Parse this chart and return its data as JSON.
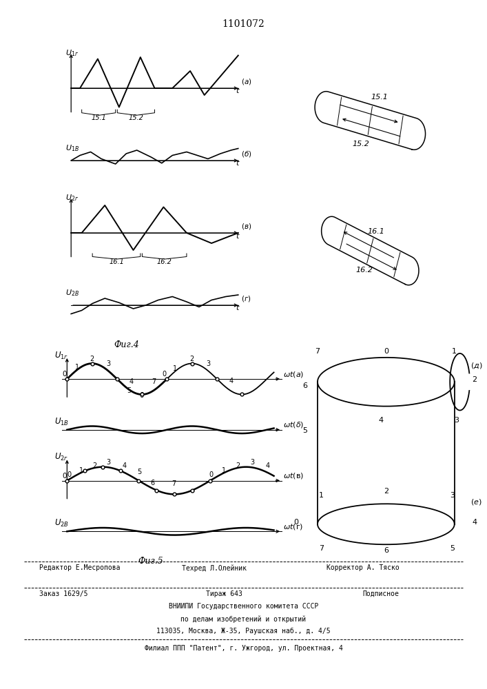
{
  "title": "1101072",
  "fig4_label": "Фиг.4",
  "fig5_label": "Фиг.5",
  "bg_color": "#ffffff",
  "line_color": "#000000",
  "footer_editor": "Редактор Е.Месропова",
  "footer_tech": "Техред Л.Олейник",
  "footer_corr": "Корректор А. Тяско",
  "footer_order": "Заказ 1629/5",
  "footer_print": "Тираж 643",
  "footer_sub": "Подписное",
  "footer_org1": "ВНИИПИ Государственного комитета СССР",
  "footer_org2": "по делам изобретений и открытий",
  "footer_addr": "113035, Москва, Ж-35, Раушская наб., д. 4/5",
  "footer_branch": "Филиал ППП \"Патент\", г. Ужгород, ул. Проектная, 4"
}
